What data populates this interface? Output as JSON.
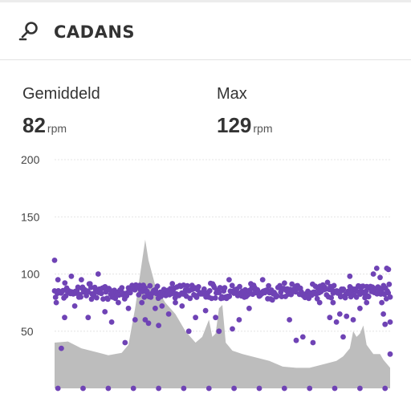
{
  "header": {
    "title": "CADANS",
    "icon": "pedal-crank-icon"
  },
  "stats": {
    "average": {
      "label": "Gemiddeld",
      "value": "82",
      "unit": "rpm"
    },
    "max": {
      "label": "Max",
      "value": "129",
      "unit": "rpm"
    }
  },
  "colors": {
    "dots": "#6f43b5",
    "area": "#bdbdbd",
    "grid": "#e4e4e4"
  },
  "chart_data": {
    "type": "scatter",
    "yticks": [
      "200",
      "150",
      "100",
      "50"
    ],
    "ylim": [
      0,
      200
    ],
    "grid": true,
    "cadence_band": [
      80,
      90
    ],
    "series": [
      {
        "values": [
          82,
          86,
          80,
          88,
          84,
          79,
          91,
          85,
          83,
          87,
          81,
          89,
          84,
          78,
          86,
          90,
          82,
          85,
          88,
          80,
          84,
          87,
          83,
          86,
          81,
          89,
          85,
          82,
          88,
          84
        ]
      },
      {
        "points": [
          [
            0,
            112
          ],
          [
            0.5,
            75
          ],
          [
            1,
            95
          ],
          [
            2,
            35
          ],
          [
            3,
            62
          ],
          [
            5,
            98
          ],
          [
            6,
            72
          ],
          [
            8,
            95
          ],
          [
            10,
            62
          ],
          [
            11,
            78
          ],
          [
            13,
            100
          ],
          [
            15,
            67
          ],
          [
            17,
            58
          ],
          [
            19,
            75
          ],
          [
            21,
            40
          ],
          [
            22,
            70
          ],
          [
            24,
            60
          ],
          [
            26,
            75
          ],
          [
            27,
            60
          ],
          [
            28,
            57
          ],
          [
            30,
            70
          ],
          [
            31,
            55
          ],
          [
            32,
            72
          ],
          [
            34,
            65
          ],
          [
            35,
            83
          ],
          [
            36,
            75
          ],
          [
            38,
            72
          ],
          [
            40,
            50
          ],
          [
            42,
            62
          ],
          [
            45,
            68
          ],
          [
            48,
            62
          ],
          [
            49,
            50
          ],
          [
            52,
            95
          ],
          [
            53,
            52
          ],
          [
            55,
            60
          ],
          [
            58,
            70
          ],
          [
            62,
            95
          ],
          [
            66,
            80
          ],
          [
            70,
            60
          ],
          [
            72,
            42
          ],
          [
            74,
            45
          ],
          [
            77,
            40
          ],
          [
            79,
            75
          ],
          [
            82,
            62
          ],
          [
            83,
            75
          ],
          [
            84,
            58
          ],
          [
            85,
            65
          ],
          [
            86,
            45
          ],
          [
            87,
            63
          ],
          [
            88,
            98
          ],
          [
            89,
            60
          ],
          [
            91,
            70
          ],
          [
            93,
            75
          ],
          [
            95,
            100
          ],
          [
            96,
            105
          ],
          [
            97,
            97
          ],
          [
            97.5,
            75
          ],
          [
            98,
            65
          ],
          [
            98.5,
            56
          ],
          [
            99,
            105
          ],
          [
            99.5,
            104
          ],
          [
            100,
            58
          ],
          [
            100,
            30
          ]
        ]
      }
    ],
    "area": [
      [
        0,
        40
      ],
      [
        4,
        41
      ],
      [
        8,
        35
      ],
      [
        12,
        32
      ],
      [
        16,
        29
      ],
      [
        20,
        31
      ],
      [
        22,
        38
      ],
      [
        24,
        70
      ],
      [
        26,
        110
      ],
      [
        27,
        130
      ],
      [
        28,
        112
      ],
      [
        30,
        90
      ],
      [
        33,
        75
      ],
      [
        36,
        65
      ],
      [
        39,
        50
      ],
      [
        42,
        40
      ],
      [
        44,
        45
      ],
      [
        46,
        60
      ],
      [
        47,
        45
      ],
      [
        48,
        48
      ],
      [
        49,
        70
      ],
      [
        50,
        73
      ],
      [
        51,
        40
      ],
      [
        53,
        33
      ],
      [
        56,
        30
      ],
      [
        60,
        27
      ],
      [
        64,
        24
      ],
      [
        68,
        19
      ],
      [
        72,
        18
      ],
      [
        76,
        18
      ],
      [
        80,
        21
      ],
      [
        84,
        24
      ],
      [
        86,
        28
      ],
      [
        88,
        35
      ],
      [
        89,
        50
      ],
      [
        90,
        45
      ],
      [
        91,
        48
      ],
      [
        92,
        55
      ],
      [
        93,
        38
      ],
      [
        95,
        30
      ],
      [
        97,
        30
      ],
      [
        98,
        25
      ],
      [
        100,
        18
      ]
    ],
    "xlim": [
      0,
      100
    ]
  }
}
